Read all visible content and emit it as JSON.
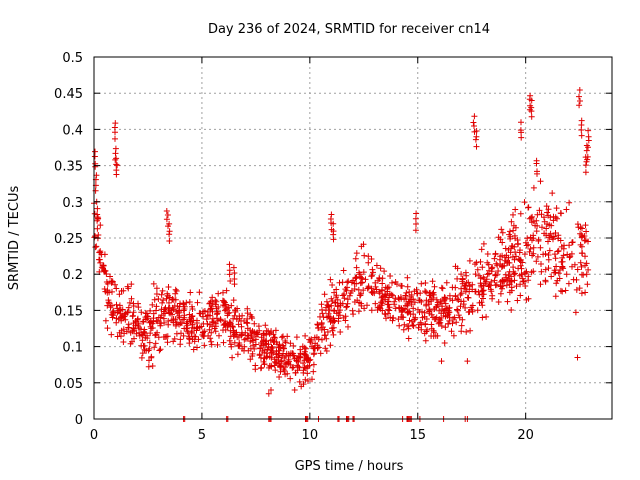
{
  "chart_data": {
    "type": "scatter",
    "title": "Day 236 of 2024, SRMTID for receiver cn14",
    "xlabel": "GPS time / hours",
    "ylabel": "SRMTID / TECUs",
    "xlim": [
      0,
      24
    ],
    "ylim": [
      0,
      0.5
    ],
    "x_ticks": [
      0,
      5,
      10,
      15,
      20
    ],
    "x_tick_labels": [
      "0",
      "5",
      "10",
      "15",
      "20"
    ],
    "y_ticks": [
      0,
      0.05,
      0.1,
      0.15,
      0.2,
      0.25,
      0.3,
      0.35,
      0.4,
      0.45,
      0.5
    ],
    "y_tick_labels": [
      "0",
      "0.05",
      "0.1",
      "0.15",
      "0.2",
      "0.25",
      "0.3",
      "0.35",
      "0.4",
      "0.45",
      "0.5"
    ],
    "grid": true,
    "marker": "+",
    "colors": {
      "series": "#e00000",
      "grid": "#a0a0a0",
      "axis": "#000000"
    },
    "trend": {
      "x": [
        0,
        0.3,
        0.6,
        1.0,
        1.5,
        2.0,
        2.5,
        3.0,
        3.5,
        4.0,
        4.5,
        5.0,
        5.5,
        6.0,
        6.5,
        7.0,
        7.5,
        8.0,
        8.5,
        9.0,
        9.5,
        10.0,
        10.5,
        11.0,
        11.5,
        12.0,
        12.5,
        13.0,
        13.5,
        14.0,
        14.5,
        15.0,
        15.5,
        16.0,
        16.5,
        17.0,
        17.5,
        18.0,
        18.5,
        19.0,
        19.5,
        20.0,
        20.5,
        21.0,
        21.5,
        22.0,
        22.5,
        22.9
      ],
      "y": [
        0.3,
        0.22,
        0.17,
        0.15,
        0.14,
        0.13,
        0.12,
        0.14,
        0.15,
        0.14,
        0.14,
        0.13,
        0.14,
        0.15,
        0.13,
        0.12,
        0.11,
        0.1,
        0.09,
        0.085,
        0.08,
        0.08,
        0.12,
        0.15,
        0.17,
        0.18,
        0.19,
        0.18,
        0.17,
        0.16,
        0.15,
        0.15,
        0.15,
        0.14,
        0.15,
        0.17,
        0.18,
        0.19,
        0.2,
        0.21,
        0.22,
        0.23,
        0.24,
        0.25,
        0.24,
        0.23,
        0.22,
        0.23
      ],
      "spread": [
        0.04,
        0.04,
        0.04,
        0.04,
        0.035,
        0.035,
        0.04,
        0.04,
        0.04,
        0.04,
        0.035,
        0.035,
        0.035,
        0.04,
        0.035,
        0.035,
        0.03,
        0.03,
        0.03,
        0.025,
        0.025,
        0.03,
        0.035,
        0.04,
        0.04,
        0.04,
        0.04,
        0.04,
        0.035,
        0.035,
        0.035,
        0.035,
        0.035,
        0.035,
        0.04,
        0.045,
        0.045,
        0.05,
        0.05,
        0.055,
        0.055,
        0.06,
        0.06,
        0.06,
        0.06,
        0.06,
        0.06,
        0.06
      ]
    },
    "spikes": [
      {
        "x": 0.05,
        "y": 0.37
      },
      {
        "x": 0.1,
        "y": 0.34
      },
      {
        "x": 0.15,
        "y": 0.3
      },
      {
        "x": 1.0,
        "y": 0.41
      },
      {
        "x": 1.0,
        "y": 0.375
      },
      {
        "x": 1.05,
        "y": 0.36
      },
      {
        "x": 3.4,
        "y": 0.29
      },
      {
        "x": 3.5,
        "y": 0.27
      },
      {
        "x": 6.3,
        "y": 0.215
      },
      {
        "x": 6.5,
        "y": 0.21
      },
      {
        "x": 11.0,
        "y": 0.285
      },
      {
        "x": 11.1,
        "y": 0.27
      },
      {
        "x": 14.9,
        "y": 0.285
      },
      {
        "x": 17.6,
        "y": 0.42
      },
      {
        "x": 17.7,
        "y": 0.4
      },
      {
        "x": 19.8,
        "y": 0.41
      },
      {
        "x": 20.2,
        "y": 0.45
      },
      {
        "x": 20.25,
        "y": 0.44
      },
      {
        "x": 20.5,
        "y": 0.36
      },
      {
        "x": 22.5,
        "y": 0.455
      },
      {
        "x": 22.6,
        "y": 0.415
      },
      {
        "x": 22.9,
        "y": 0.4
      },
      {
        "x": 22.85,
        "y": 0.38
      },
      {
        "x": 22.8,
        "y": 0.365
      }
    ],
    "lows": [
      {
        "x": 8.1,
        "y": 0.035
      },
      {
        "x": 8.2,
        "y": 0.04
      },
      {
        "x": 9.3,
        "y": 0.04
      },
      {
        "x": 9.6,
        "y": 0.045
      },
      {
        "x": 16.1,
        "y": 0.08
      },
      {
        "x": 22.4,
        "y": 0.085
      },
      {
        "x": 17.3,
        "y": 0.08
      },
      {
        "x": 10.1,
        "y": 0.055
      }
    ],
    "zero_values_x": [
      4.15,
      4.2,
      6.15,
      6.2,
      8.1,
      8.15,
      8.2,
      9.8,
      9.85,
      9.9,
      10.4,
      11.3,
      11.35,
      11.7,
      11.75,
      11.8,
      12.0,
      12.05,
      14.3,
      14.5,
      14.55,
      14.6,
      14.65,
      14.7,
      15.1,
      16.2,
      17.2,
      17.3
    ]
  }
}
